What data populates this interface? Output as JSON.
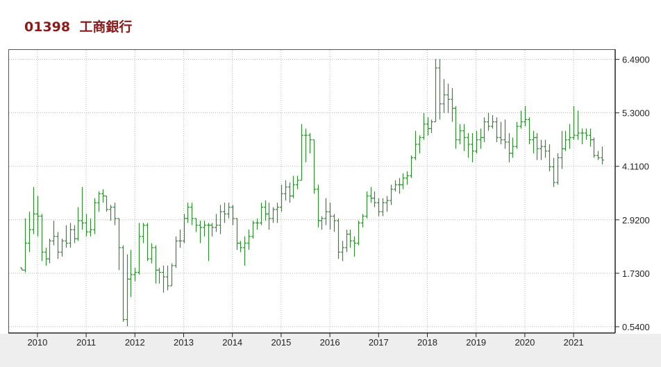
{
  "header": {
    "code": "01398",
    "name": "工商銀行"
  },
  "chart_data": {
    "type": "ohlc",
    "frequency": "monthly",
    "color": "#2e8b2e",
    "grid": true,
    "ylim": [
      0.4,
      6.7
    ],
    "yticks": [
      "6.4900",
      "5.3000",
      "4.1100",
      "2.9200",
      "1.7300",
      "0.5400"
    ],
    "xticks": [
      "2010",
      "2011",
      "2012",
      "2013",
      "2014",
      "2015",
      "2016",
      "2017",
      "2018",
      "2019",
      "2020",
      "2021"
    ],
    "start_date": "2009-09",
    "bars": [
      [
        1.85,
        1.85,
        1.8,
        1.8
      ],
      [
        1.8,
        2.95,
        1.75,
        2.4
      ],
      [
        2.4,
        3.1,
        2.2,
        2.7
      ],
      [
        2.7,
        3.65,
        2.6,
        3.05
      ],
      [
        3.05,
        3.45,
        2.55,
        3.0
      ],
      [
        3.0,
        3.05,
        2.0,
        2.2
      ],
      [
        2.2,
        2.3,
        1.9,
        2.05
      ],
      [
        2.05,
        2.5,
        1.95,
        2.45
      ],
      [
        2.45,
        2.9,
        2.35,
        2.55
      ],
      [
        2.55,
        2.65,
        2.05,
        2.2
      ],
      [
        2.2,
        2.5,
        2.1,
        2.45
      ],
      [
        2.45,
        2.8,
        2.3,
        2.4
      ],
      [
        2.4,
        2.85,
        2.3,
        2.7
      ],
      [
        2.7,
        2.8,
        2.4,
        2.5
      ],
      [
        2.5,
        3.2,
        2.45,
        2.9
      ],
      [
        2.9,
        3.65,
        2.7,
        2.85
      ],
      [
        2.85,
        3.05,
        2.55,
        2.65
      ],
      [
        2.65,
        2.95,
        2.55,
        2.7
      ],
      [
        2.7,
        3.4,
        2.6,
        3.3
      ],
      [
        3.3,
        3.55,
        3.1,
        3.5
      ],
      [
        3.5,
        3.6,
        3.3,
        3.45
      ],
      [
        3.45,
        3.45,
        3.1,
        3.15
      ],
      [
        3.15,
        3.25,
        2.9,
        3.2
      ],
      [
        3.2,
        3.3,
        2.8,
        2.95
      ],
      [
        2.95,
        2.95,
        1.8,
        2.3
      ],
      [
        2.3,
        2.35,
        0.65,
        0.7
      ],
      [
        0.7,
        2.15,
        0.55,
        1.6
      ],
      [
        1.6,
        2.25,
        1.2,
        1.7
      ],
      [
        1.7,
        1.85,
        1.55,
        1.75
      ],
      [
        1.75,
        2.85,
        1.7,
        2.55
      ],
      [
        2.55,
        2.85,
        2.4,
        2.8
      ],
      [
        2.8,
        2.85,
        2.0,
        2.05
      ],
      [
        2.05,
        2.4,
        1.95,
        2.3
      ],
      [
        2.3,
        2.35,
        1.5,
        1.8
      ],
      [
        1.8,
        1.85,
        1.5,
        1.75
      ],
      [
        1.75,
        1.9,
        1.3,
        1.65
      ],
      [
        1.65,
        1.9,
        1.35,
        1.45
      ],
      [
        1.45,
        1.95,
        1.45,
        1.9
      ],
      [
        1.9,
        2.55,
        1.85,
        2.45
      ],
      [
        2.45,
        2.7,
        2.3,
        2.45
      ],
      [
        2.45,
        3.05,
        2.4,
        2.95
      ],
      [
        2.95,
        3.3,
        2.85,
        3.2
      ],
      [
        3.2,
        3.3,
        2.8,
        2.95
      ],
      [
        2.95,
        2.95,
        2.65,
        2.8
      ],
      [
        2.8,
        2.9,
        2.4,
        2.75
      ],
      [
        2.75,
        2.9,
        2.55,
        2.8
      ],
      [
        2.8,
        2.85,
        2.0,
        2.8
      ],
      [
        2.8,
        2.85,
        2.55,
        2.75
      ],
      [
        2.75,
        3.05,
        2.65,
        2.8
      ],
      [
        2.8,
        3.25,
        2.6,
        3.1
      ],
      [
        3.1,
        3.3,
        2.85,
        3.05
      ],
      [
        3.05,
        3.3,
        2.95,
        3.2
      ],
      [
        3.2,
        3.25,
        2.8,
        2.95
      ],
      [
        2.95,
        2.95,
        2.25,
        2.4
      ],
      [
        2.4,
        2.45,
        2.2,
        2.3
      ],
      [
        2.3,
        2.55,
        1.9,
        2.4
      ],
      [
        2.4,
        2.7,
        2.25,
        2.55
      ],
      [
        2.55,
        2.9,
        2.5,
        2.85
      ],
      [
        2.85,
        2.95,
        2.7,
        2.85
      ],
      [
        2.85,
        3.3,
        2.8,
        3.2
      ],
      [
        3.2,
        3.35,
        2.9,
        3.05
      ],
      [
        3.05,
        3.3,
        2.7,
        2.95
      ],
      [
        2.95,
        3.2,
        2.85,
        3.15
      ],
      [
        3.15,
        3.3,
        2.85,
        3.2
      ],
      [
        3.2,
        3.7,
        3.1,
        3.5
      ],
      [
        3.5,
        3.8,
        3.35,
        3.65
      ],
      [
        3.65,
        3.75,
        3.3,
        3.45
      ],
      [
        3.45,
        3.9,
        3.4,
        3.7
      ],
      [
        3.7,
        3.9,
        3.6,
        3.8
      ],
      [
        3.8,
        5.05,
        3.8,
        4.8
      ],
      [
        4.8,
        4.95,
        4.2,
        4.8
      ],
      [
        4.8,
        4.85,
        4.4,
        4.7
      ],
      [
        4.7,
        4.7,
        3.5,
        3.6
      ],
      [
        3.6,
        3.7,
        2.75,
        2.9
      ],
      [
        2.9,
        3.0,
        2.7,
        2.95
      ],
      [
        2.95,
        3.4,
        2.8,
        3.1
      ],
      [
        3.1,
        3.3,
        2.7,
        3.0
      ],
      [
        3.0,
        3.05,
        2.65,
        2.9
      ],
      [
        2.9,
        2.95,
        2.05,
        2.2
      ],
      [
        2.2,
        2.45,
        2.0,
        2.3
      ],
      [
        2.3,
        2.7,
        2.2,
        2.6
      ],
      [
        2.6,
        2.7,
        2.3,
        2.45
      ],
      [
        2.45,
        2.55,
        2.1,
        2.4
      ],
      [
        2.4,
        2.9,
        2.35,
        2.85
      ],
      [
        2.85,
        3.05,
        2.75,
        3.0
      ],
      [
        3.0,
        3.55,
        2.95,
        3.45
      ],
      [
        3.45,
        3.65,
        3.3,
        3.4
      ],
      [
        3.4,
        3.55,
        3.2,
        3.3
      ],
      [
        3.3,
        3.4,
        3.0,
        3.1
      ],
      [
        3.1,
        3.4,
        3.0,
        3.3
      ],
      [
        3.3,
        3.45,
        3.1,
        3.35
      ],
      [
        3.35,
        3.7,
        3.25,
        3.6
      ],
      [
        3.6,
        3.8,
        3.55,
        3.7
      ],
      [
        3.7,
        3.85,
        3.5,
        3.7
      ],
      [
        3.7,
        3.95,
        3.6,
        3.85
      ],
      [
        3.85,
        4.0,
        3.7,
        3.9
      ],
      [
        3.9,
        4.35,
        3.85,
        4.3
      ],
      [
        4.3,
        4.9,
        4.25,
        4.6
      ],
      [
        4.6,
        4.8,
        4.4,
        4.75
      ],
      [
        4.75,
        5.3,
        4.7,
        5.05
      ],
      [
        5.05,
        5.2,
        4.8,
        4.95
      ],
      [
        4.95,
        5.15,
        4.85,
        5.1
      ],
      [
        5.1,
        6.5,
        5.1,
        6.3
      ],
      [
        6.3,
        6.5,
        5.15,
        5.5
      ],
      [
        5.5,
        6.05,
        5.3,
        5.7
      ],
      [
        5.7,
        5.95,
        5.3,
        5.6
      ],
      [
        5.6,
        5.85,
        5.1,
        5.4
      ],
      [
        5.4,
        5.45,
        4.5,
        4.7
      ],
      [
        4.7,
        5.05,
        4.6,
        4.9
      ],
      [
        4.9,
        5.05,
        4.45,
        4.75
      ],
      [
        4.75,
        4.85,
        4.3,
        4.6
      ],
      [
        4.6,
        4.85,
        4.2,
        4.45
      ],
      [
        4.45,
        4.9,
        4.4,
        4.7
      ],
      [
        4.7,
        4.95,
        4.5,
        4.75
      ],
      [
        4.75,
        5.2,
        4.65,
        5.1
      ],
      [
        5.1,
        5.3,
        4.9,
        5.0
      ],
      [
        5.0,
        5.25,
        4.95,
        5.1
      ],
      [
        5.1,
        5.2,
        4.65,
        4.75
      ],
      [
        4.75,
        5.1,
        4.6,
        4.7
      ],
      [
        4.7,
        5.15,
        4.5,
        4.65
      ],
      [
        4.65,
        4.85,
        4.2,
        4.4
      ],
      [
        4.4,
        4.75,
        4.3,
        4.55
      ],
      [
        4.55,
        5.1,
        4.5,
        5.0
      ],
      [
        5.0,
        5.35,
        4.95,
        5.1
      ],
      [
        5.1,
        5.45,
        5.0,
        5.15
      ],
      [
        5.15,
        5.2,
        4.6,
        4.7
      ],
      [
        4.7,
        4.9,
        4.4,
        4.75
      ],
      [
        4.75,
        4.85,
        4.25,
        4.5
      ],
      [
        4.5,
        4.7,
        4.25,
        4.55
      ],
      [
        4.55,
        4.7,
        4.3,
        4.45
      ],
      [
        4.45,
        4.6,
        4.0,
        4.1
      ],
      [
        4.1,
        4.3,
        3.65,
        3.75
      ],
      [
        3.75,
        4.4,
        3.7,
        4.3
      ],
      [
        4.3,
        4.9,
        4.05,
        4.5
      ],
      [
        4.5,
        4.9,
        4.45,
        4.7
      ],
      [
        4.7,
        5.05,
        4.5,
        4.75
      ],
      [
        4.75,
        5.45,
        4.7,
        4.8
      ],
      [
        4.8,
        5.35,
        4.7,
        4.85
      ],
      [
        4.85,
        4.95,
        4.6,
        4.85
      ],
      [
        4.85,
        4.95,
        4.7,
        4.8
      ],
      [
        4.8,
        4.95,
        4.55,
        4.7
      ],
      [
        4.7,
        4.75,
        4.3,
        4.35
      ],
      [
        4.35,
        4.45,
        4.25,
        4.3
      ],
      [
        4.3,
        4.55,
        4.15,
        4.25
      ]
    ]
  }
}
